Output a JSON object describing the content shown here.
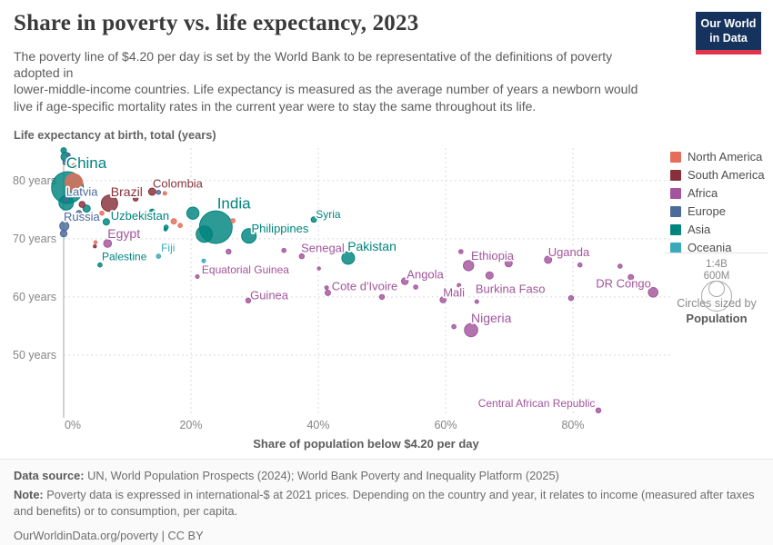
{
  "header": {
    "title": "Share in poverty vs. life expectancy, 2023",
    "subtitle": "The poverty line of $4.20 per day is set by the World Bank to be representative of the definitions of poverty\nadopted in\nlower-middle-income countries. Life expectancy is measured as the average number of years a newborn would\nlive if age-specific mortality rates in the current year were to stay the same throughout its life.",
    "logo": {
      "line1": "Our World",
      "line2": "in Data"
    }
  },
  "colors": {
    "northamerica": "#e56e5a",
    "southamerica": "#883039",
    "africa": "#a2559c",
    "europe": "#4c6a9c",
    "asia": "#00847e",
    "oceania": "#38aaba"
  },
  "chart_data": {
    "type": "scatter",
    "title": "Share in poverty vs. life expectancy, 2023",
    "x_axis": {
      "label": "Share of population below $4.20 per day",
      "ticks": [
        0,
        20,
        40,
        60,
        80
      ],
      "tick_suffix": "%",
      "lim": [
        0,
        95
      ]
    },
    "y_axis": {
      "label": "Life expectancy at birth, total (years)",
      "ticks": [
        50,
        60,
        70,
        80
      ],
      "tick_suffix": " years",
      "lim": [
        40,
        85.6
      ]
    },
    "legend": {
      "position": "right",
      "entries": [
        {
          "label": "North America",
          "key": "northamerica"
        },
        {
          "label": "South America",
          "key": "southamerica"
        },
        {
          "label": "Africa",
          "key": "africa"
        },
        {
          "label": "Europe",
          "key": "europe"
        },
        {
          "label": "Asia",
          "key": "asia"
        },
        {
          "label": "Oceania",
          "key": "oceania"
        }
      ]
    },
    "size_legend": {
      "big": "1:4B",
      "small": "600M",
      "caption": "Circles sized by",
      "caption_bold": "Population"
    },
    "grid": "dashed",
    "points": [
      {
        "name": "",
        "continent": "asia",
        "x": 0.0,
        "y": 85.2,
        "r": 3
      },
      {
        "name": "",
        "continent": "asia",
        "x": 0.3,
        "y": 84.1,
        "r": 5
      },
      {
        "name": "",
        "continent": "europe",
        "x": 0.7,
        "y": 84.4,
        "r": 2.3
      },
      {
        "name": "",
        "continent": "europe",
        "x": 0.2,
        "y": 83.1,
        "r": 2.3
      },
      {
        "name": "",
        "continent": "northamerica",
        "x": 1.7,
        "y": 82.5,
        "r": 3
      },
      {
        "name": "China",
        "continent": "asia",
        "x": 0.6,
        "y": 78.8,
        "r": 17.5
      },
      {
        "name": "",
        "continent": "asia",
        "x": 0.4,
        "y": 76.2,
        "r": 8
      },
      {
        "name": "",
        "continent": "northamerica",
        "x": 1.6,
        "y": 79.7,
        "r": 9.5
      },
      {
        "name": "Latvia",
        "continent": "europe",
        "x": 0.4,
        "y": 76.8,
        "r": 2.3
      },
      {
        "name": "",
        "continent": "europe",
        "x": 2.1,
        "y": 77.8,
        "r": 2.3
      },
      {
        "name": "",
        "continent": "southamerica",
        "x": 2.9,
        "y": 75.9,
        "r": 3.3
      },
      {
        "name": "",
        "continent": "asia",
        "x": 3.6,
        "y": 75.2,
        "r": 4
      },
      {
        "name": "",
        "continent": "europe",
        "x": 2.4,
        "y": 74.4,
        "r": 3
      },
      {
        "name": "Russia",
        "continent": "europe",
        "x": 0.1,
        "y": 72.2,
        "r": 5
      },
      {
        "name": "",
        "continent": "europe",
        "x": 0.0,
        "y": 70.9,
        "r": 3.7
      },
      {
        "name": "",
        "continent": "northamerica",
        "x": 6.0,
        "y": 74.4,
        "r": 2.3
      },
      {
        "name": "Uzbekistan",
        "continent": "asia",
        "x": 6.7,
        "y": 72.9,
        "r": 3.5
      },
      {
        "name": "Brazil",
        "continent": "southamerica",
        "x": 7.2,
        "y": 76.1,
        "r": 9
      },
      {
        "name": "",
        "continent": "southamerica",
        "x": 11.3,
        "y": 76.9,
        "r": 2.7
      },
      {
        "name": "",
        "continent": "northamerica",
        "x": 17.3,
        "y": 73.0,
        "r": 3
      },
      {
        "name": "",
        "continent": "northamerica",
        "x": 18.3,
        "y": 72.3,
        "r": 2.3
      },
      {
        "name": "",
        "continent": "asia",
        "x": 13.9,
        "y": 74.7,
        "r": 2.7
      },
      {
        "name": "",
        "continent": "asia",
        "x": 16.1,
        "y": 72.0,
        "r": 2.3
      },
      {
        "name": "Egypt",
        "continent": "africa",
        "x": 6.9,
        "y": 69.2,
        "r": 4.3
      },
      {
        "name": "",
        "continent": "northamerica",
        "x": 5.0,
        "y": 69.4,
        "r": 1.7
      },
      {
        "name": "",
        "continent": "southamerica",
        "x": 4.9,
        "y": 68.7,
        "r": 1.7
      },
      {
        "name": "Palestine",
        "continent": "asia",
        "x": 5.7,
        "y": 65.5,
        "r": 2.3
      },
      {
        "name": "Fiji",
        "continent": "oceania",
        "x": 14.9,
        "y": 67.0,
        "r": 2.3
      },
      {
        "name": "",
        "continent": "asia",
        "x": 16.0,
        "y": 71.6,
        "r": 1.7
      },
      {
        "name": "Colombia",
        "continent": "southamerica",
        "x": 13.9,
        "y": 78.1,
        "r": 4
      },
      {
        "name": "",
        "continent": "europe",
        "x": 14.9,
        "y": 78.0,
        "r": 2.3
      },
      {
        "name": "",
        "continent": "northamerica",
        "x": 15.9,
        "y": 77.8,
        "r": 2
      },
      {
        "name": "",
        "continent": "asia",
        "x": 20.3,
        "y": 74.4,
        "r": 6.7
      },
      {
        "name": "India",
        "continent": "asia",
        "x": 23.9,
        "y": 72.0,
        "r": 18
      },
      {
        "name": "",
        "continent": "asia",
        "x": 22.1,
        "y": 70.8,
        "r": 9
      },
      {
        "name": "",
        "continent": "northamerica",
        "x": 26.6,
        "y": 73.1,
        "r": 2.3
      },
      {
        "name": "Philippines",
        "continent": "asia",
        "x": 29.1,
        "y": 70.5,
        "r": 8
      },
      {
        "name": "",
        "continent": "africa",
        "x": 25.9,
        "y": 67.8,
        "r": 2.7
      },
      {
        "name": "",
        "continent": "oceania",
        "x": 22.0,
        "y": 66.2,
        "r": 2
      },
      {
        "name": "Equatorial Guinea",
        "continent": "africa",
        "x": 21.0,
        "y": 63.5,
        "r": 2
      },
      {
        "name": "",
        "continent": "africa",
        "x": 34.6,
        "y": 68.0,
        "r": 2.3
      },
      {
        "name": "Senegal",
        "continent": "africa",
        "x": 37.4,
        "y": 67.0,
        "r": 2.7
      },
      {
        "name": "Syria",
        "continent": "asia",
        "x": 39.3,
        "y": 73.3,
        "r": 3
      },
      {
        "name": "Pakistan",
        "continent": "asia",
        "x": 44.7,
        "y": 66.7,
        "r": 7
      },
      {
        "name": "",
        "continent": "africa",
        "x": 40.1,
        "y": 64.9,
        "r": 1.7
      },
      {
        "name": "Guinea",
        "continent": "africa",
        "x": 29.0,
        "y": 59.4,
        "r": 2.7
      },
      {
        "name": "Cote d'Ivoire",
        "continent": "africa",
        "x": 41.5,
        "y": 60.7,
        "r": 3
      },
      {
        "name": "",
        "continent": "africa",
        "x": 41.3,
        "y": 61.6,
        "r": 2
      },
      {
        "name": "",
        "continent": "africa",
        "x": 50.0,
        "y": 60.0,
        "r": 2.7
      },
      {
        "name": "Angola",
        "continent": "africa",
        "x": 53.6,
        "y": 62.7,
        "r": 3.7
      },
      {
        "name": "",
        "continent": "africa",
        "x": 55.3,
        "y": 61.7,
        "r": 2.3
      },
      {
        "name": "Mali",
        "continent": "africa",
        "x": 59.6,
        "y": 59.5,
        "r": 3.3
      },
      {
        "name": "",
        "continent": "africa",
        "x": 62.1,
        "y": 62.0,
        "r": 2
      },
      {
        "name": "",
        "continent": "africa",
        "x": 62.4,
        "y": 67.8,
        "r": 2.3
      },
      {
        "name": "Ethiopia",
        "continent": "africa",
        "x": 63.6,
        "y": 65.4,
        "r": 5.7
      },
      {
        "name": "",
        "continent": "africa",
        "x": 69.9,
        "y": 65.8,
        "r": 4
      },
      {
        "name": "Burkina Faso",
        "continent": "africa",
        "x": 66.9,
        "y": 63.7,
        "r": 4
      },
      {
        "name": "",
        "continent": "africa",
        "x": 64.9,
        "y": 59.2,
        "r": 2
      },
      {
        "name": "Uganda",
        "continent": "africa",
        "x": 76.1,
        "y": 66.4,
        "r": 4
      },
      {
        "name": "",
        "continent": "africa",
        "x": 81.1,
        "y": 65.5,
        "r": 2.3
      },
      {
        "name": "",
        "continent": "africa",
        "x": 87.4,
        "y": 65.3,
        "r": 2.3
      },
      {
        "name": "",
        "continent": "africa",
        "x": 89.1,
        "y": 63.4,
        "r": 3
      },
      {
        "name": "DR Congo",
        "continent": "africa",
        "x": 92.6,
        "y": 60.8,
        "r": 5.3
      },
      {
        "name": "",
        "continent": "africa",
        "x": 79.7,
        "y": 59.8,
        "r": 2.7
      },
      {
        "name": "Nigeria",
        "continent": "africa",
        "x": 64.0,
        "y": 54.3,
        "r": 7.3
      },
      {
        "name": "",
        "continent": "africa",
        "x": 61.3,
        "y": 54.9,
        "r": 2.3
      },
      {
        "name": "Central African Republic",
        "continent": "africa",
        "x": 84.0,
        "y": 40.5,
        "r": 2.7
      }
    ],
    "labels": [
      {
        "text": "China",
        "x": 0.4,
        "y": 83.0,
        "c": "asia",
        "size": 17
      },
      {
        "text": "Latvia",
        "x": 0.4,
        "y": 78.1,
        "c": "europe",
        "size": 13
      },
      {
        "text": "Brazil",
        "x": 7.4,
        "y": 78.1,
        "c": "southamerica",
        "size": 14
      },
      {
        "text": "Colombia",
        "x": 14.0,
        "y": 79.5,
        "c": "southamerica",
        "size": 13
      },
      {
        "text": "Russia",
        "x": 0.0,
        "y": 73.8,
        "c": "europe",
        "size": 13
      },
      {
        "text": "Uzbekistan",
        "x": 7.4,
        "y": 74.0,
        "c": "asia",
        "size": 13
      },
      {
        "text": "Egypt",
        "x": 6.9,
        "y": 70.9,
        "c": "africa",
        "size": 14
      },
      {
        "text": "Palestine",
        "x": 6.0,
        "y": 66.9,
        "c": "asia",
        "size": 12
      },
      {
        "text": "Fiji",
        "x": 15.3,
        "y": 68.4,
        "c": "oceania",
        "size": 12
      },
      {
        "text": "India",
        "x": 24.1,
        "y": 76.1,
        "c": "asia",
        "size": 17
      },
      {
        "text": "Philippines",
        "x": 29.5,
        "y": 71.8,
        "c": "asia",
        "size": 13
      },
      {
        "text": "Syria",
        "x": 39.6,
        "y": 74.2,
        "c": "asia",
        "size": 12
      },
      {
        "text": "Senegal",
        "x": 37.3,
        "y": 68.4,
        "c": "africa",
        "size": 13
      },
      {
        "text": "Pakistan",
        "x": 44.6,
        "y": 68.7,
        "c": "asia",
        "size": 14
      },
      {
        "text": "Equatorial Guinea",
        "x": 21.7,
        "y": 64.7,
        "c": "africa",
        "size": 12
      },
      {
        "text": "Guinea",
        "x": 29.3,
        "y": 60.3,
        "c": "africa",
        "size": 13
      },
      {
        "text": "Cote d'Ivoire",
        "x": 42.1,
        "y": 61.9,
        "c": "africa",
        "size": 13
      },
      {
        "text": "Angola",
        "x": 53.9,
        "y": 63.9,
        "c": "africa",
        "size": 13
      },
      {
        "text": "Mali",
        "x": 59.6,
        "y": 60.8,
        "c": "africa",
        "size": 13
      },
      {
        "text": "Ethiopia",
        "x": 64.0,
        "y": 67.1,
        "c": "africa",
        "size": 13
      },
      {
        "text": "Burkina Faso",
        "x": 64.7,
        "y": 61.4,
        "c": "africa",
        "size": 13
      },
      {
        "text": "Uganda",
        "x": 76.1,
        "y": 67.7,
        "c": "africa",
        "size": 13
      },
      {
        "text": "Nigeria",
        "x": 64.0,
        "y": 56.4,
        "c": "africa",
        "size": 14
      },
      {
        "text": "DR Congo",
        "x": 83.6,
        "y": 62.3,
        "c": "africa",
        "size": 13
      },
      {
        "text": "Central African Republic",
        "x": 65.1,
        "y": 41.7,
        "c": "africa",
        "size": 12
      }
    ]
  },
  "footer": {
    "datasource_label": "Data source:",
    "datasource": " UN, World Population Prospects (2024); World Bank Poverty and Inequality Platform (2025)",
    "note_label": "Note:",
    "note": " Poverty data is expressed in international-$ at 2021 prices. Depending on the country and year, it relates to income (measured after taxes and benefits) or to consumption, per capita.",
    "license": "OurWorldinData.org/poverty | CC BY"
  }
}
